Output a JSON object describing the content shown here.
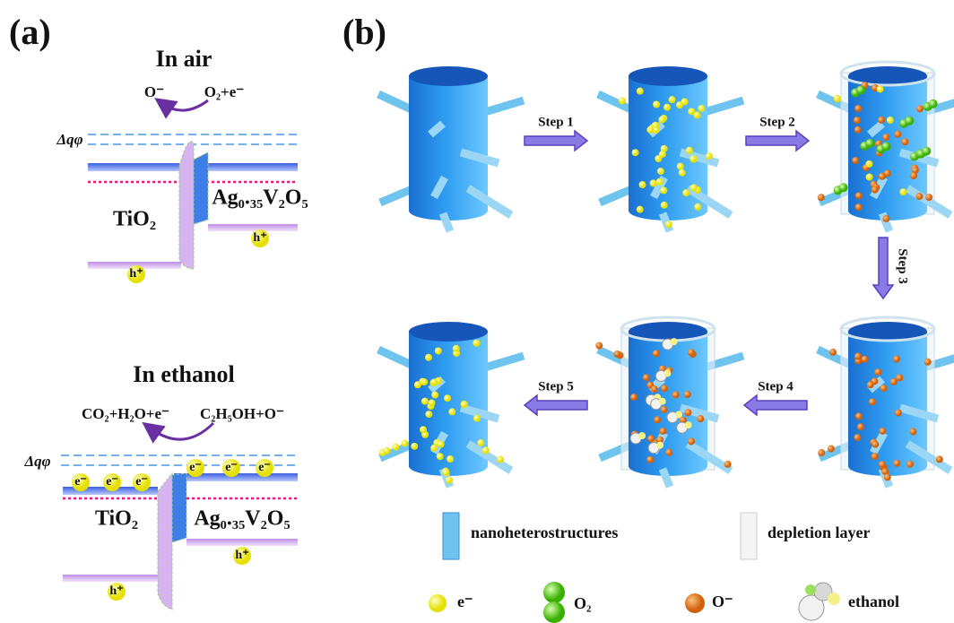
{
  "panel_a": {
    "label": "(a)",
    "air": {
      "title": "In air",
      "left_reaction": "O⁻",
      "right_reaction": "O₂+e⁻",
      "barrier": "Δqφ",
      "left_material": "TiO₂",
      "right_material": "Ag₀.₃₅V₂O₅",
      "holes": [
        "h⁺",
        "h⁺"
      ]
    },
    "ethanol": {
      "title": "In ethanol",
      "left_reaction": "CO₂+H₂O+e⁻",
      "right_reaction": "C₂H₅OH+O⁻",
      "barrier": "Δqφ",
      "left_material": "TiO₂",
      "right_material": "Ag₀.₃₅V₂O₅",
      "holes": [
        "h⁺",
        "h⁺"
      ],
      "electrons": [
        "e⁻",
        "e⁻",
        "e⁻",
        "e⁻",
        "e⁻",
        "e⁻"
      ]
    }
  },
  "panel_b": {
    "label": "(b)",
    "steps": [
      "Step 1",
      "Step 2",
      "Step 3",
      "Step 4",
      "Step 5"
    ],
    "legend": [
      "nanoheterostructures",
      "depletion layer",
      "e⁻",
      "O₂",
      "O⁻",
      "ethanol"
    ]
  }
}
